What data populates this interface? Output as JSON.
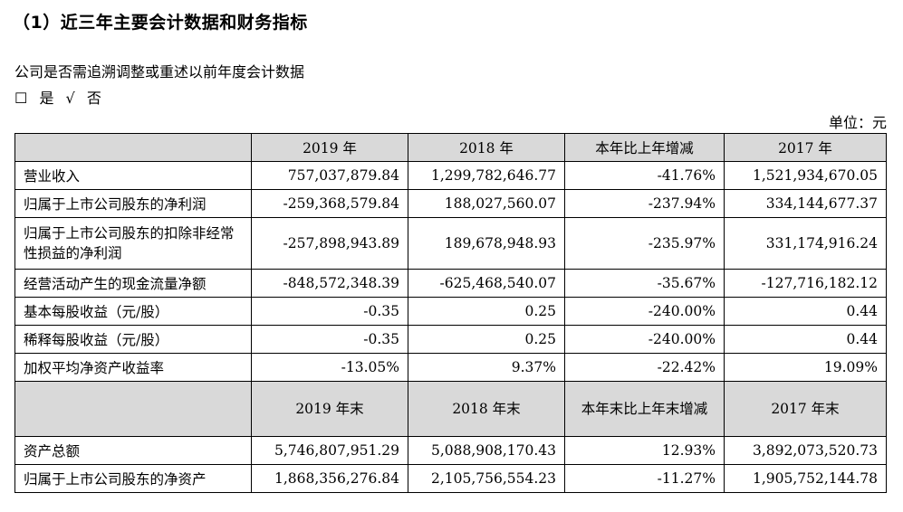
{
  "heading": "（1）近三年主要会计数据和财务指标",
  "question": "公司是否需追溯调整或重述以前年度会计数据",
  "answer": {
    "box": "☐",
    "yes": "是",
    "check": "√",
    "no": "否"
  },
  "unit": "单位：元",
  "table": {
    "header1": [
      "",
      "2019 年",
      "2018 年",
      "本年比上年增减",
      "2017 年"
    ],
    "rows1": [
      [
        "营业收入",
        "757,037,879.84",
        "1,299,782,646.77",
        "-41.76%",
        "1,521,934,670.05"
      ],
      [
        "归属于上市公司股东的净利润",
        "-259,368,579.84",
        "188,027,560.07",
        "-237.94%",
        "334,144,677.37"
      ],
      [
        "归属于上市公司股东的扣除非经常性损益的净利润",
        "-257,898,943.89",
        "189,678,948.93",
        "-235.97%",
        "331,174,916.24"
      ],
      [
        "经营活动产生的现金流量净额",
        "-848,572,348.39",
        "-625,468,540.07",
        "-35.67%",
        "-127,716,182.12"
      ],
      [
        "基本每股收益（元/股）",
        "-0.35",
        "0.25",
        "-240.00%",
        "0.44"
      ],
      [
        "稀释每股收益（元/股）",
        "-0.35",
        "0.25",
        "-240.00%",
        "0.44"
      ],
      [
        "加权平均净资产收益率",
        "-13.05%",
        "9.37%",
        "-22.42%",
        "19.09%"
      ]
    ],
    "header2": [
      "",
      "2019 年末",
      "2018 年末",
      "本年末比上年末增减",
      "2017 年末"
    ],
    "rows2": [
      [
        "资产总额",
        "5,746,807,951.29",
        "5,088,908,170.43",
        "12.93%",
        "3,892,073,520.73"
      ],
      [
        "归属于上市公司股东的净资产",
        "1,868,356,276.84",
        "2,105,756,554.23",
        "-11.27%",
        "1,905,752,144.78"
      ]
    ]
  }
}
